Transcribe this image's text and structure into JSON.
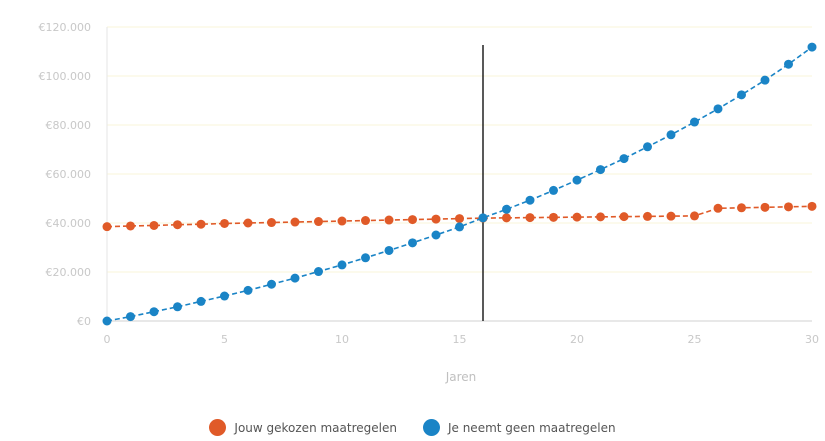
{
  "chart_data": {
    "type": "line",
    "title": "",
    "xlabel": "Jaren",
    "ylabel": "",
    "x": [
      0,
      1,
      2,
      3,
      4,
      5,
      6,
      7,
      8,
      9,
      10,
      11,
      12,
      13,
      14,
      15,
      16,
      17,
      18,
      19,
      20,
      21,
      22,
      23,
      24,
      25,
      26,
      27,
      28,
      29,
      30
    ],
    "xlim": [
      0,
      30
    ],
    "ylim": [
      0,
      120000
    ],
    "x_ticks": [
      0,
      5,
      10,
      15,
      20,
      25,
      30
    ],
    "x_tick_labels": [
      "0",
      "5",
      "10",
      "15",
      "20",
      "25",
      "30"
    ],
    "y_ticks": [
      0,
      20000,
      40000,
      60000,
      80000,
      100000,
      120000
    ],
    "y_tick_labels": [
      "€0",
      "€20.000",
      "€40.000",
      "€60.000",
      "€80.000",
      "€100.000",
      "€120.000"
    ],
    "grid": true,
    "legend_position": "bottom",
    "vertical_marker_x": 16,
    "series": [
      {
        "name": "Jouw gekozen maatregelen",
        "color": "#e05a28",
        "values": [
          38500,
          38800,
          39000,
          39300,
          39500,
          39800,
          40000,
          40200,
          40400,
          40600,
          40800,
          41000,
          41200,
          41400,
          41600,
          41800,
          42000,
          42100,
          42200,
          42300,
          42400,
          42500,
          42600,
          42700,
          42800,
          42900,
          46000,
          46200,
          46400,
          46600,
          46800
        ]
      },
      {
        "name": "Je neemt geen maatregelen",
        "color": "#1a84c6",
        "values": [
          0,
          1800,
          3800,
          5800,
          8000,
          10200,
          12500,
          15000,
          17500,
          20200,
          22900,
          25800,
          28800,
          31900,
          35100,
          38400,
          42100,
          45600,
          49300,
          53300,
          57500,
          61800,
          66300,
          71100,
          76000,
          81200,
          86600,
          92300,
          98300,
          104800,
          111800
        ]
      }
    ]
  },
  "legend": {
    "item0": "Jouw gekozen maatregelen",
    "item1": "Je neemt geen maatregelen"
  }
}
